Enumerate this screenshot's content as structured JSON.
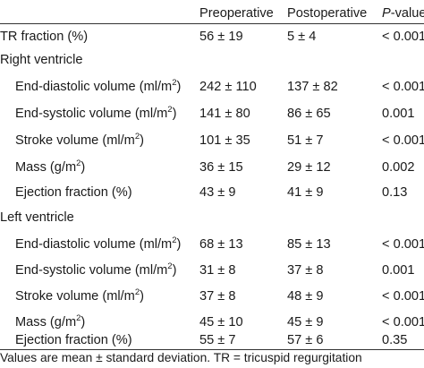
{
  "header": {
    "label": "",
    "pre": "Preoperative",
    "post": "Postoperative",
    "p_italic": "P",
    "p_rest": "-value"
  },
  "rows": [
    {
      "label": "TR fraction (%)",
      "sup": "",
      "suffix": "",
      "pre": "56 ± 19",
      "post": "5 ± 4",
      "p": "< 0.001"
    },
    {
      "label": "Right ventricle",
      "sup": "",
      "suffix": "",
      "pre": "",
      "post": "",
      "p": ""
    },
    {
      "label": "End-diastolic volume (ml/m",
      "sup": "2",
      "suffix": ")",
      "pre": "242 ± 110",
      "post": "137 ± 82",
      "p": "< 0.001"
    },
    {
      "label": "End-systolic volume (ml/m",
      "sup": "2",
      "suffix": ")",
      "pre": "141 ± 80",
      "post": "86 ± 65",
      "p": "0.001"
    },
    {
      "label": "Stroke volume (ml/m",
      "sup": "2",
      "suffix": ")",
      "pre": "101 ± 35",
      "post": "51 ± 7",
      "p": "< 0.001"
    },
    {
      "label": "Mass (g/m",
      "sup": "2",
      "suffix": ")",
      "pre": "36 ± 15",
      "post": "29 ± 12",
      "p": "0.002"
    },
    {
      "label": "Ejection fraction (%)",
      "sup": "",
      "suffix": "",
      "pre": "43 ± 9",
      "post": "41 ± 9",
      "p": "0.13"
    },
    {
      "label": "Left ventricle",
      "sup": "",
      "suffix": "",
      "pre": "",
      "post": "",
      "p": ""
    },
    {
      "label": "End-diastolic volume (ml/m",
      "sup": "2",
      "suffix": ")",
      "pre": "68 ± 13",
      "post": "85 ± 13",
      "p": "< 0.001"
    },
    {
      "label": "End-systolic volume (ml/m",
      "sup": "2",
      "suffix": ")",
      "pre": "31 ± 8",
      "post": "37 ± 8",
      "p": "0.001"
    },
    {
      "label": "Stroke volume (ml/m",
      "sup": "2",
      "suffix": ")",
      "pre": "37 ± 8",
      "post": "48 ± 9",
      "p": "< 0.001"
    },
    {
      "label": "Mass (g/m",
      "sup": "2",
      "suffix": ")",
      "pre": "45 ± 10",
      "post": "45 ± 9",
      "p": "< 0.001"
    },
    {
      "label": "Ejection fraction (%)",
      "sup": "",
      "suffix": "",
      "pre": "55 ± 7",
      "post": "57 ± 6",
      "p": "0.35"
    }
  ],
  "footnote": "Values are mean ± standard deviation. TR = tricuspid regurgitation"
}
